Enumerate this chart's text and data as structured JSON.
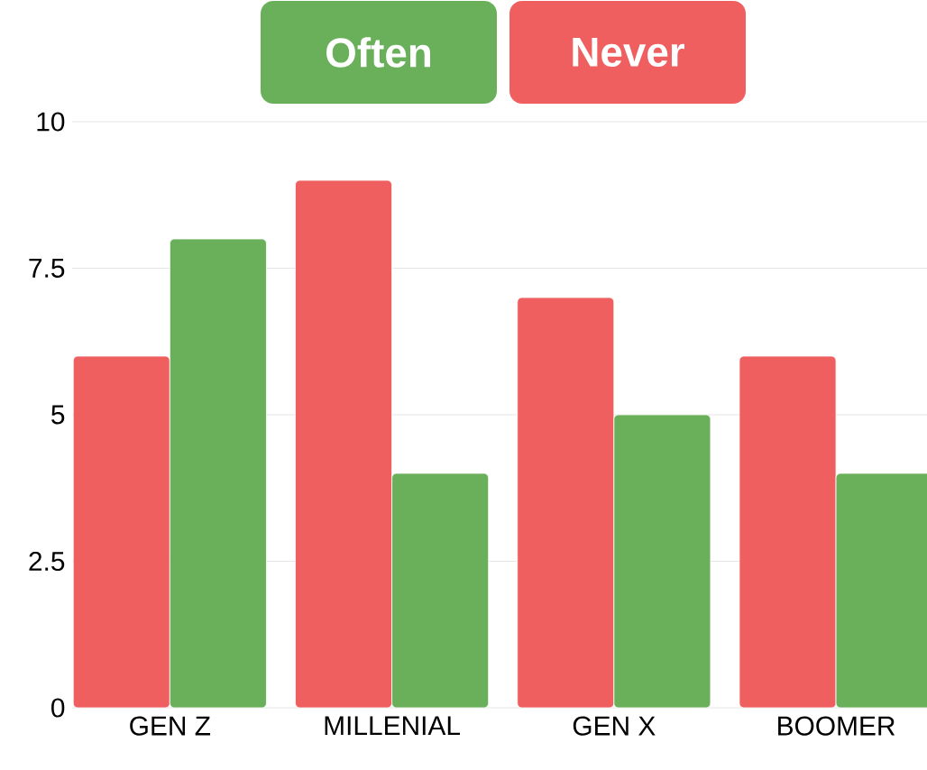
{
  "chart_data": {
    "type": "bar",
    "categories": [
      "GEN Z",
      "MILLENIAL",
      "GEN X",
      "BOOMER"
    ],
    "series": [
      {
        "name": "Never",
        "color": "#ef5f60",
        "values": [
          6,
          9,
          7,
          6
        ]
      },
      {
        "name": "Often",
        "color": "#6ab05a",
        "values": [
          8,
          4,
          5,
          4
        ]
      }
    ],
    "ylim": [
      0,
      10
    ],
    "yticks": [
      0,
      2.5,
      5,
      7.5,
      10
    ],
    "grid": "y",
    "legend": "top"
  }
}
